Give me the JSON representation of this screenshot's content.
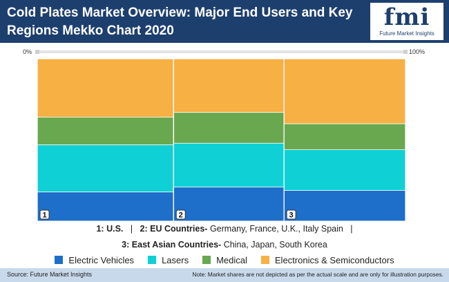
{
  "header": {
    "title": "Cold Plates Market Overview: Major End Users and Key Regions Mekko Chart 2020",
    "logo_text": "fmi",
    "logo_subtitle": "Future Market Insights"
  },
  "colors": {
    "header_bg": "#1d3f6e",
    "footer_bg": "#c9d9ec",
    "Electric Vehicles": "#1e6fc9",
    "Lasers": "#0fd0d4",
    "Medical": "#6aa84f",
    "Electronics & Semiconductors": "#f7b044"
  },
  "chart_data": {
    "type": "mekko",
    "title": "Cold Plates Market Overview: Major End Users and Key Regions Mekko Chart 2020",
    "scale_labels": {
      "start": "0%",
      "end": "100%"
    },
    "categories": [
      "1",
      "2",
      "3"
    ],
    "category_widths": [
      0.37,
      0.3,
      0.33
    ],
    "series": [
      {
        "name": "Electric Vehicles",
        "values": [
          18,
          21,
          19
        ]
      },
      {
        "name": "Lasers",
        "values": [
          29,
          27,
          25
        ]
      },
      {
        "name": "Medical",
        "values": [
          17,
          19,
          16
        ]
      },
      {
        "name": "Electronics & Semiconductors",
        "values": [
          36,
          33,
          40
        ]
      }
    ],
    "region_key": [
      {
        "num": "1:",
        "name": "U.S.",
        "detail": ""
      },
      {
        "num": "2:",
        "name": "EU Countries-",
        "detail": "Germany, France, U.K., Italy Spain"
      },
      {
        "num": "3:",
        "name": "East Asian Countries-",
        "detail": "China, Japan, South Korea"
      }
    ],
    "separator": "|",
    "legend_position": "bottom"
  },
  "footer": {
    "source": "Source: Future Market Insights",
    "note": "Note: Market shares are not depicted as per the actual scale and are only for illustration purposes."
  }
}
